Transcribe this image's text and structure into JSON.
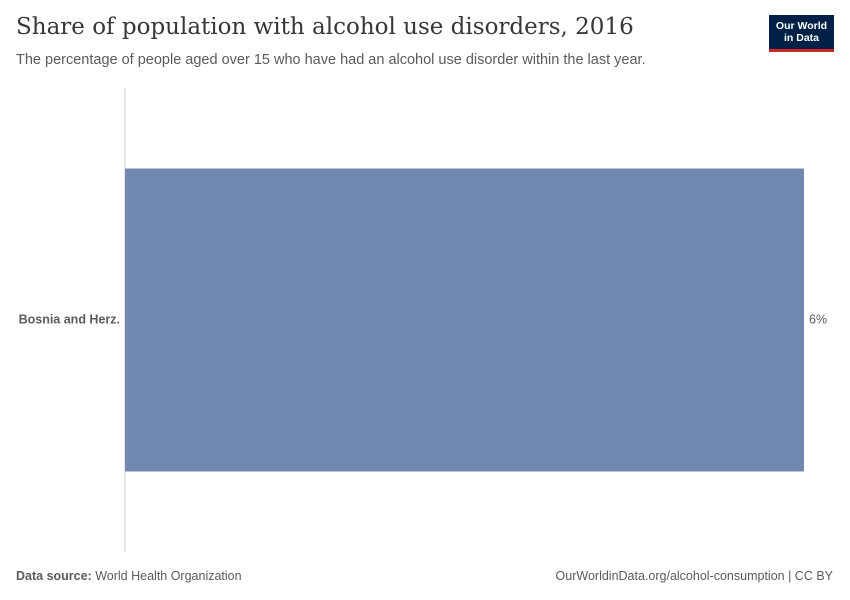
{
  "header": {
    "title": "Share of population with alcohol use disorders, 2016",
    "subtitle": "The percentage of people aged over 15 who have had an alcohol use disorder within the last year."
  },
  "logo": {
    "line1": "Our World",
    "line2": "in Data"
  },
  "footer": {
    "source_label": "Data source:",
    "source_value": "World Health Organization",
    "url_license": "OurWorldinData.org/alcohol-consumption | CC BY"
  },
  "colors": {
    "bar": "#7189b0",
    "axis": "#cccccc",
    "logo_bg": "#002147",
    "logo_accent": "#ce261e"
  },
  "chart_data": {
    "type": "bar",
    "orientation": "horizontal",
    "categories": [
      "Bosnia and Herz."
    ],
    "values": [
      6
    ],
    "value_labels": [
      "6%"
    ],
    "unit": "%",
    "xlim": [
      0,
      6
    ],
    "grid": false,
    "legend": "none"
  }
}
